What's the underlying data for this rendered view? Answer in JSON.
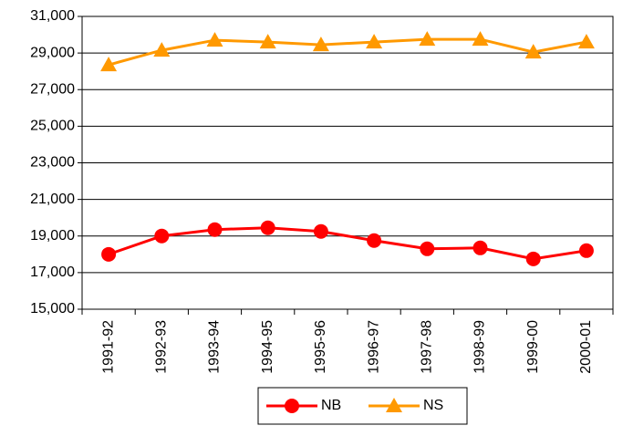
{
  "chart_data": {
    "type": "line",
    "categories": [
      "1991-92",
      "1992-93",
      "1993-94",
      "1994-95",
      "1995-96",
      "1996-97",
      "1997-98",
      "1998-99",
      "1999-00",
      "2000-01"
    ],
    "series": [
      {
        "name": "NB",
        "color": "#ff0000",
        "marker": "circle",
        "values": [
          18000,
          19000,
          19350,
          19450,
          19250,
          18750,
          18300,
          18350,
          17750,
          18200
        ]
      },
      {
        "name": "NS",
        "color": "#ff9900",
        "marker": "triangle",
        "values": [
          28350,
          29150,
          29700,
          29600,
          29450,
          29600,
          29750,
          29750,
          29050,
          29600
        ]
      }
    ],
    "ylim": [
      15000,
      31000
    ],
    "yticks": [
      {
        "value": 15000,
        "label": "15,000"
      },
      {
        "value": 17000,
        "label": "17,000"
      },
      {
        "value": 19000,
        "label": "19,000"
      },
      {
        "value": 21000,
        "label": "21,000"
      },
      {
        "value": 23000,
        "label": "23,000"
      },
      {
        "value": 25000,
        "label": "25,000"
      },
      {
        "value": 27000,
        "label": "27,000"
      },
      {
        "value": 29000,
        "label": "29,000"
      },
      {
        "value": 31000,
        "label": "31,000"
      }
    ],
    "grid": true,
    "legend": "bottom"
  }
}
